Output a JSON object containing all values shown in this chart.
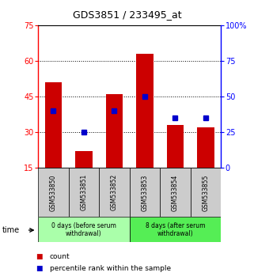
{
  "title": "GDS3851 / 233495_at",
  "samples": [
    "GSM533850",
    "GSM533851",
    "GSM533852",
    "GSM533853",
    "GSM533854",
    "GSM533855"
  ],
  "count_values": [
    51,
    22,
    46,
    63,
    33,
    32
  ],
  "percentile_values": [
    40,
    25,
    40,
    50,
    35,
    35
  ],
  "ylim_left": [
    15,
    75
  ],
  "ylim_right": [
    0,
    100
  ],
  "yticks_left": [
    15,
    30,
    45,
    60,
    75
  ],
  "yticks_right": [
    0,
    25,
    50,
    75,
    100
  ],
  "bar_color": "#cc0000",
  "dot_color": "#0000cc",
  "group1_label": "0 days (before serum\nwithdrawal)",
  "group2_label": "8 days (after serum\nwithdrawal)",
  "group1_color": "#aaffaa",
  "group2_color": "#55ee55",
  "sample_bg_color": "#cccccc",
  "xlabel": "time",
  "legend_count": "count",
  "legend_pct": "percentile rank within the sample",
  "bar_width": 0.55,
  "bar_bottom": 15,
  "fig_width": 3.21,
  "fig_height": 3.54,
  "dpi": 100
}
